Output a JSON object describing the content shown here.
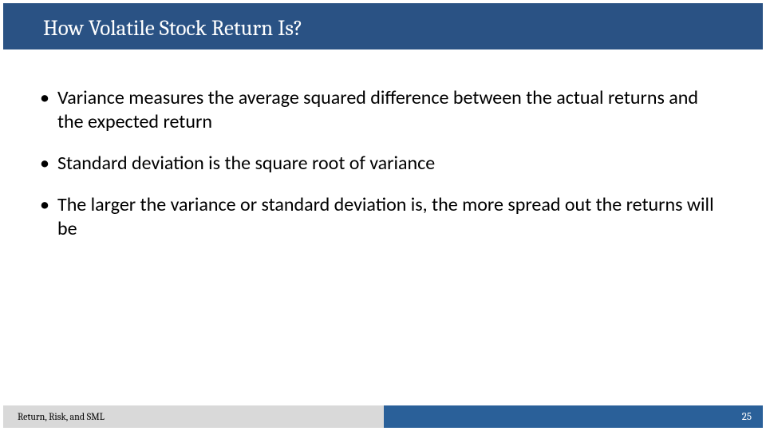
{
  "title": "How Volatile Stock Return Is?",
  "bullets": [
    "Variance measures the average squared difference between the actual returns and the expected return",
    "Standard deviation is the square root of variance",
    "The larger the variance or standard deviation is, the more spread out the returns will be"
  ],
  "footer": {
    "left": "Return, Risk, and SML",
    "page": "25"
  },
  "colors": {
    "title_bar": "#2a5284",
    "footer_gray": "#d9d9d9",
    "footer_blue": "#2a6099",
    "text": "#000000",
    "title_text": "#ffffff",
    "page_text": "#ffffff",
    "background": "#ffffff"
  },
  "typography": {
    "title_font": "Cambria",
    "title_fontsize_pt": 27,
    "body_font": "Calibri",
    "body_fontsize_pt": 24,
    "footer_fontsize_pt": 12
  }
}
